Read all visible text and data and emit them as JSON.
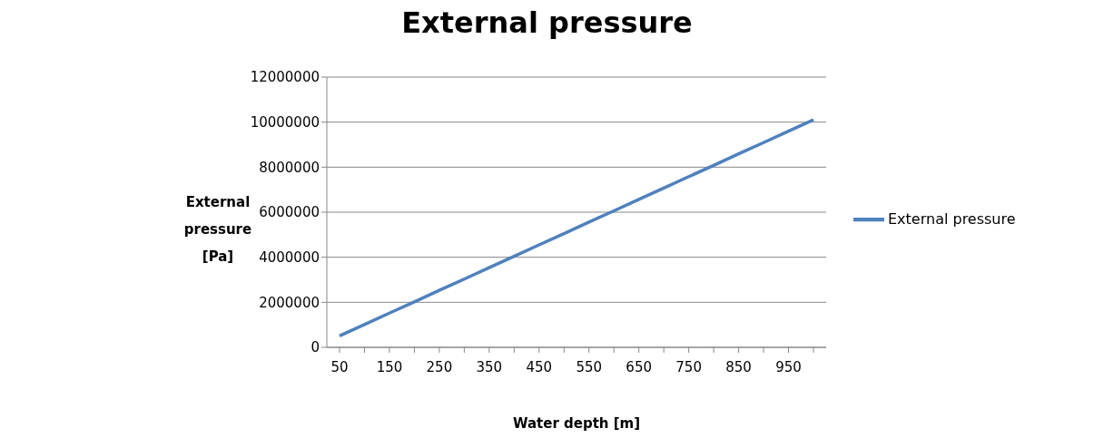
{
  "chart_data": {
    "type": "line",
    "title": "External pressure",
    "xlabel": "Water depth [m]",
    "ylabel": "External pressure [Pa]",
    "categories": [
      "50",
      null,
      "150",
      null,
      "250",
      null,
      "350",
      null,
      "450",
      null,
      "550",
      null,
      "650",
      null,
      "750",
      null,
      "850",
      null,
      "950",
      null
    ],
    "series": [
      {
        "name": "External pressure",
        "color": "#4f81bd",
        "values": [
          510000,
          1010000,
          1520000,
          2020000,
          2530000,
          3030000,
          3540000,
          4040000,
          4550000,
          5050000,
          5560000,
          6060000,
          6570000,
          7070000,
          7580000,
          8080000,
          8590000,
          9090000,
          9600000,
          10100000
        ]
      }
    ],
    "ylim": [
      0,
      12000000
    ],
    "yticks": [
      0,
      2000000,
      4000000,
      6000000,
      8000000,
      10000000,
      12000000
    ],
    "grid": "y",
    "legend": "right",
    "marker": "none",
    "line_style": "solid"
  }
}
